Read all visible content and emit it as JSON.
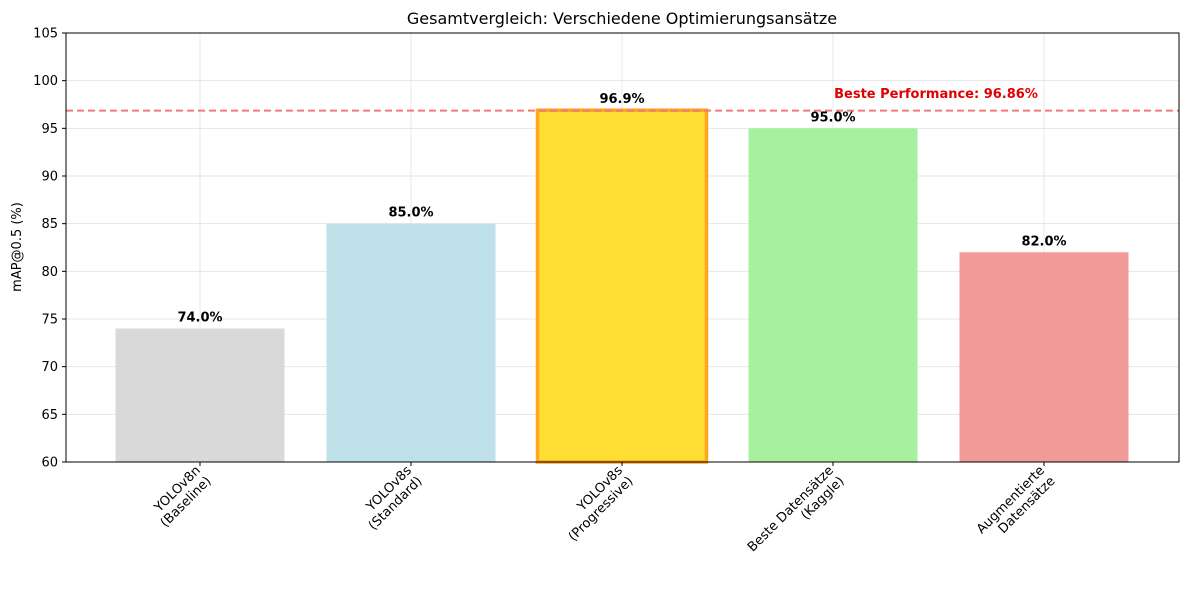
{
  "chart_data": {
    "type": "bar",
    "title": "Gesamtvergleich: Verschiedene Optimierungsansätze",
    "xlabel": "",
    "ylabel": "mAP@0.5 (%)",
    "ylim": [
      60,
      105
    ],
    "yticks": [
      "60",
      "65",
      "70",
      "75",
      "80",
      "85",
      "90",
      "95",
      "100",
      "105"
    ],
    "grid": true,
    "categories": [
      [
        "YOLOv8n",
        "(Baseline)"
      ],
      [
        "YOLOv8s",
        "(Standard)"
      ],
      [
        "YOLOv8s",
        "(Progressive)"
      ],
      [
        "Beste Datensätze",
        "(Kaggle)"
      ],
      [
        "Augmentierte",
        "Datensätze"
      ]
    ],
    "values": [
      74.0,
      85.0,
      96.9,
      95.0,
      82.0
    ],
    "value_labels": [
      "74.0%",
      "85.0%",
      "96.9%",
      "95.0%",
      "82.0%"
    ],
    "colors": [
      "#d9d9d9",
      "#bde0e9",
      "#ffde33",
      "#a6f0a0",
      "#f29a98"
    ],
    "highlight_index": 2,
    "highlight_edge_color": "#ffa51f",
    "reference_line": {
      "value": 96.86,
      "color": "#f07a7a"
    },
    "annotation": {
      "text": "Beste Performance: 96.86%",
      "color": "#e00000"
    }
  }
}
